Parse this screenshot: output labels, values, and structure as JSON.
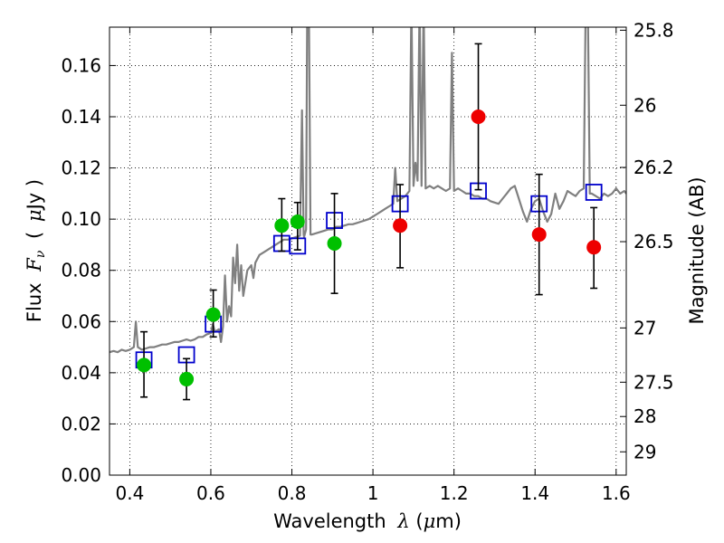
{
  "chart_data": {
    "type": "scatter",
    "xlabel": "Wavelength",
    "xlabel_symbol": "λ",
    "xlabel_unit_open": "(",
    "xlabel_unit_mu": "μ",
    "xlabel_unit_rest": "m)",
    "ylabel": "Flux",
    "ylabel_symbol": "F",
    "ylabel_symbol_sub": "ν",
    "ylabel_unit_open": "(",
    "ylabel_unit_mu": "μ",
    "ylabel_unit_rest": "Jy )",
    "y2label": "Magnitude (AB)",
    "xlim": [
      0.35,
      1.625
    ],
    "ylim": [
      0.0,
      0.175
    ],
    "grid": true,
    "x_ticks": [
      0.4,
      0.6,
      0.8,
      1.0,
      1.2,
      1.4,
      1.6
    ],
    "x_tick_labels": [
      "0.4",
      "0.6",
      "0.8",
      "1",
      "1.2",
      "1.4",
      "1.6"
    ],
    "y_ticks": [
      0.0,
      0.02,
      0.04,
      0.06,
      0.08,
      0.1,
      0.12,
      0.14,
      0.16
    ],
    "y_tick_labels": [
      "0.00",
      "0.02",
      "0.04",
      "0.06",
      "0.08",
      "0.10",
      "0.12",
      "0.14",
      "0.16"
    ],
    "y2_ticks": [
      {
        "label": "25.8",
        "flux": 0.1738
      },
      {
        "label": "26",
        "flux": 0.1445
      },
      {
        "label": "26.2",
        "flux": 0.1202
      },
      {
        "label": "26.5",
        "flux": 0.0912
      },
      {
        "label": "27",
        "flux": 0.0575
      },
      {
        "label": "27.5",
        "flux": 0.0363
      },
      {
        "label": "28",
        "flux": 0.0229
      },
      {
        "label": "29",
        "flux": 0.0091
      }
    ],
    "series": [
      {
        "name": "model_spectrum",
        "kind": "line",
        "color": "#808080",
        "points": [
          [
            0.35,
            0.048
          ],
          [
            0.36,
            0.0485
          ],
          [
            0.37,
            0.048
          ],
          [
            0.38,
            0.049
          ],
          [
            0.39,
            0.0485
          ],
          [
            0.4,
            0.049
          ],
          [
            0.41,
            0.05
          ],
          [
            0.415,
            0.06
          ],
          [
            0.42,
            0.05
          ],
          [
            0.43,
            0.049
          ],
          [
            0.44,
            0.0495
          ],
          [
            0.45,
            0.05
          ],
          [
            0.46,
            0.05
          ],
          [
            0.47,
            0.0505
          ],
          [
            0.48,
            0.051
          ],
          [
            0.49,
            0.051
          ],
          [
            0.5,
            0.0515
          ],
          [
            0.51,
            0.052
          ],
          [
            0.52,
            0.052
          ],
          [
            0.53,
            0.0525
          ],
          [
            0.54,
            0.053
          ],
          [
            0.55,
            0.0525
          ],
          [
            0.56,
            0.053
          ],
          [
            0.57,
            0.054
          ],
          [
            0.58,
            0.054
          ],
          [
            0.59,
            0.055
          ],
          [
            0.6,
            0.0555
          ],
          [
            0.605,
            0.059
          ],
          [
            0.61,
            0.056
          ],
          [
            0.62,
            0.057
          ],
          [
            0.625,
            0.052
          ],
          [
            0.63,
            0.058
          ],
          [
            0.635,
            0.078
          ],
          [
            0.64,
            0.06
          ],
          [
            0.645,
            0.066
          ],
          [
            0.65,
            0.062
          ],
          [
            0.655,
            0.085
          ],
          [
            0.66,
            0.075
          ],
          [
            0.665,
            0.09
          ],
          [
            0.67,
            0.072
          ],
          [
            0.675,
            0.082
          ],
          [
            0.68,
            0.07
          ],
          [
            0.69,
            0.08
          ],
          [
            0.7,
            0.082
          ],
          [
            0.705,
            0.077
          ],
          [
            0.71,
            0.083
          ],
          [
            0.72,
            0.086
          ],
          [
            0.73,
            0.087
          ],
          [
            0.74,
            0.088
          ],
          [
            0.75,
            0.089
          ],
          [
            0.76,
            0.09
          ],
          [
            0.77,
            0.091
          ],
          [
            0.78,
            0.092
          ],
          [
            0.79,
            0.092
          ],
          [
            0.8,
            0.0925
          ],
          [
            0.81,
            0.093
          ],
          [
            0.82,
            0.0935
          ],
          [
            0.825,
            0.1425
          ],
          [
            0.829,
            0.094
          ],
          [
            0.83,
            0.093
          ],
          [
            0.835,
            0.096
          ],
          [
            0.838,
            0.185
          ],
          [
            0.842,
            0.185
          ],
          [
            0.846,
            0.094
          ],
          [
            0.85,
            0.094
          ],
          [
            0.86,
            0.0945
          ],
          [
            0.87,
            0.095
          ],
          [
            0.88,
            0.0955
          ],
          [
            0.89,
            0.096
          ],
          [
            0.9,
            0.096
          ],
          [
            0.91,
            0.097
          ],
          [
            0.92,
            0.097
          ],
          [
            0.93,
            0.0975
          ],
          [
            0.94,
            0.098
          ],
          [
            0.95,
            0.098
          ],
          [
            0.96,
            0.0985
          ],
          [
            0.97,
            0.099
          ],
          [
            0.98,
            0.0995
          ],
          [
            0.99,
            0.1
          ],
          [
            1.0,
            0.101
          ],
          [
            1.01,
            0.102
          ],
          [
            1.02,
            0.103
          ],
          [
            1.03,
            0.104
          ],
          [
            1.04,
            0.105
          ],
          [
            1.05,
            0.106
          ],
          [
            1.055,
            0.12
          ],
          [
            1.06,
            0.107
          ],
          [
            1.07,
            0.108
          ],
          [
            1.08,
            0.109
          ],
          [
            1.09,
            0.111
          ],
          [
            1.095,
            0.185
          ],
          [
            1.1,
            0.113
          ],
          [
            1.105,
            0.122
          ],
          [
            1.11,
            0.115
          ],
          [
            1.115,
            0.185
          ],
          [
            1.12,
            0.113
          ],
          [
            1.125,
            0.185
          ],
          [
            1.13,
            0.112
          ],
          [
            1.14,
            0.113
          ],
          [
            1.15,
            0.112
          ],
          [
            1.16,
            0.113
          ],
          [
            1.17,
            0.112
          ],
          [
            1.18,
            0.111
          ],
          [
            1.19,
            0.112
          ],
          [
            1.195,
            0.165
          ],
          [
            1.2,
            0.111
          ],
          [
            1.21,
            0.112
          ],
          [
            1.22,
            0.111
          ],
          [
            1.23,
            0.11
          ],
          [
            1.24,
            0.11
          ],
          [
            1.25,
            0.109
          ],
          [
            1.26,
            0.109
          ],
          [
            1.27,
            0.108
          ],
          [
            1.28,
            0.108
          ],
          [
            1.29,
            0.107
          ],
          [
            1.3,
            0.1065
          ],
          [
            1.31,
            0.106
          ],
          [
            1.32,
            0.108
          ],
          [
            1.33,
            0.11
          ],
          [
            1.34,
            0.112
          ],
          [
            1.35,
            0.113
          ],
          [
            1.36,
            0.108
          ],
          [
            1.37,
            0.103
          ],
          [
            1.38,
            0.099
          ],
          [
            1.39,
            0.104
          ],
          [
            1.4,
            0.107
          ],
          [
            1.41,
            0.108
          ],
          [
            1.42,
            0.103
          ],
          [
            1.43,
            0.099
          ],
          [
            1.44,
            0.102
          ],
          [
            1.45,
            0.11
          ],
          [
            1.46,
            0.104
          ],
          [
            1.47,
            0.107
          ],
          [
            1.48,
            0.111
          ],
          [
            1.49,
            0.11
          ],
          [
            1.5,
            0.109
          ],
          [
            1.51,
            0.111
          ],
          [
            1.52,
            0.112
          ],
          [
            1.525,
            0.185
          ],
          [
            1.53,
            0.185
          ],
          [
            1.535,
            0.11
          ],
          [
            1.54,
            0.11
          ],
          [
            1.55,
            0.109
          ],
          [
            1.56,
            0.108
          ],
          [
            1.57,
            0.11
          ],
          [
            1.58,
            0.109
          ],
          [
            1.59,
            0.11
          ],
          [
            1.6,
            0.112
          ],
          [
            1.61,
            0.11
          ],
          [
            1.62,
            0.111
          ],
          [
            1.625,
            0.11
          ]
        ]
      },
      {
        "name": "model_photometry",
        "kind": "open_square",
        "color": "#0000cc",
        "points": [
          [
            0.435,
            0.045
          ],
          [
            0.54,
            0.047
          ],
          [
            0.606,
            0.059
          ],
          [
            0.775,
            0.0905
          ],
          [
            0.814,
            0.0895
          ],
          [
            0.905,
            0.0995
          ],
          [
            1.067,
            0.106
          ],
          [
            1.26,
            0.111
          ],
          [
            1.41,
            0.106
          ],
          [
            1.545,
            0.1105
          ]
        ]
      },
      {
        "name": "hst_acs_observed",
        "kind": "filled_circle",
        "color": "#00c000",
        "points": [
          [
            0.435,
            0.043,
            0.0305,
            0.056
          ],
          [
            0.54,
            0.0375,
            0.0295,
            0.0455
          ],
          [
            0.606,
            0.0627,
            0.054,
            0.0723
          ],
          [
            0.775,
            0.0975,
            0.0875,
            0.108
          ],
          [
            0.814,
            0.099,
            0.088,
            0.1065
          ],
          [
            0.905,
            0.0905,
            0.071,
            0.11
          ]
        ]
      },
      {
        "name": "hst_wfc3_observed",
        "kind": "filled_circle",
        "color": "#ee0000",
        "points": [
          [
            1.067,
            0.0975,
            0.081,
            0.1135
          ],
          [
            1.26,
            0.14,
            0.1115,
            0.1685
          ],
          [
            1.41,
            0.094,
            0.0705,
            0.1175
          ],
          [
            1.545,
            0.089,
            0.073,
            0.1045
          ]
        ]
      }
    ]
  }
}
